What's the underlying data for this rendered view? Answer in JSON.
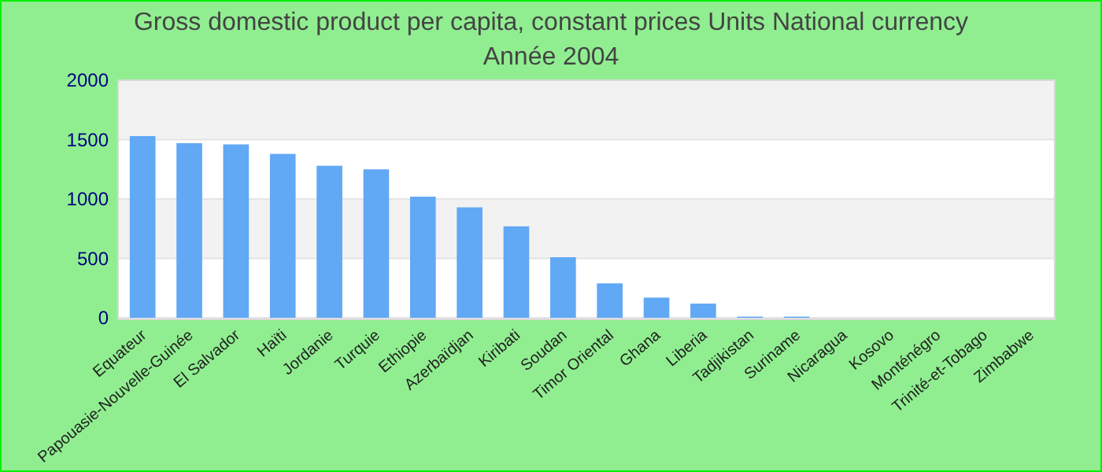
{
  "chart_data": {
    "type": "bar",
    "title": "Gross domestic product per capita, constant prices Units National currency",
    "subtitle": "Année 2004",
    "categories": [
      "Equateur",
      "Papouasie-Nouvelle-Guinée",
      "El Salvador",
      "Haïti",
      "Jordanie",
      "Turquie",
      "Ethiopie",
      "Azerbaïdjan",
      "Kiribati",
      "Soudan",
      "Timor Oriental",
      "Ghana",
      "Liberia",
      "Tadjikistan",
      "Suriname",
      "Nicaragua",
      "Kosovo",
      "Monténégro",
      "Trinité-et-Tobago",
      "Zimbabwe"
    ],
    "values": [
      1530,
      1470,
      1460,
      1380,
      1280,
      1250,
      1020,
      930,
      770,
      510,
      290,
      170,
      120,
      10,
      10,
      null,
      null,
      null,
      null,
      null
    ],
    "color": "#61a8f5",
    "ylim": [
      0,
      2000
    ],
    "yticks": [
      0,
      500,
      1000,
      1500,
      2000
    ],
    "grid": true
  }
}
